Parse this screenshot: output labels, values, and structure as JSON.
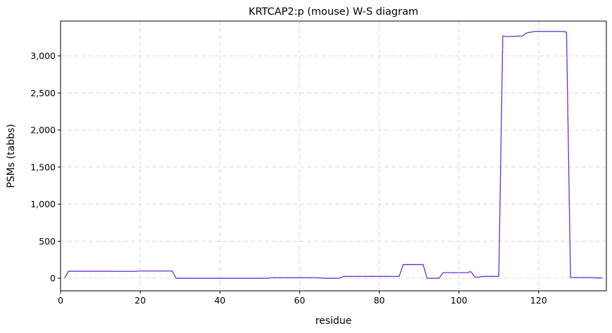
{
  "chart_data": {
    "type": "line",
    "title": "KRTCAP2:p (mouse) W-S diagram",
    "xlabel": "residue",
    "ylabel": "PSMs (tabbs)",
    "xlim": [
      0,
      137
    ],
    "ylim": [
      -170,
      3470
    ],
    "grid": true,
    "x_ticks": [
      0,
      20,
      40,
      60,
      80,
      100,
      120
    ],
    "x_tick_labels": [
      "0",
      "20",
      "40",
      "60",
      "80",
      "100",
      "120"
    ],
    "y_ticks": [
      0,
      500,
      1000,
      1500,
      2000,
      2500,
      3000
    ],
    "y_tick_labels": [
      "0",
      "500",
      "1,000",
      "1,500",
      "2,000",
      "2,500",
      "3,000"
    ],
    "series": [
      {
        "color": "#6a2fd6",
        "x": [
          1,
          2,
          12,
          13,
          19,
          20,
          28,
          29,
          52,
          53,
          64,
          65,
          66,
          70,
          71,
          84,
          85,
          86,
          91,
          92,
          95,
          96,
          102,
          103,
          104,
          105,
          106,
          110,
          111,
          112,
          116,
          117,
          118,
          119,
          126,
          127,
          128,
          133,
          134,
          136
        ],
        "values": [
          0,
          95,
          95,
          93,
          93,
          98,
          98,
          0,
          0,
          8,
          8,
          5,
          0,
          0,
          25,
          25,
          25,
          185,
          185,
          0,
          0,
          75,
          75,
          90,
          15,
          15,
          25,
          25,
          3270,
          3260,
          3270,
          3310,
          3320,
          3330,
          3330,
          3320,
          10,
          10,
          5,
          5
        ]
      }
    ]
  }
}
